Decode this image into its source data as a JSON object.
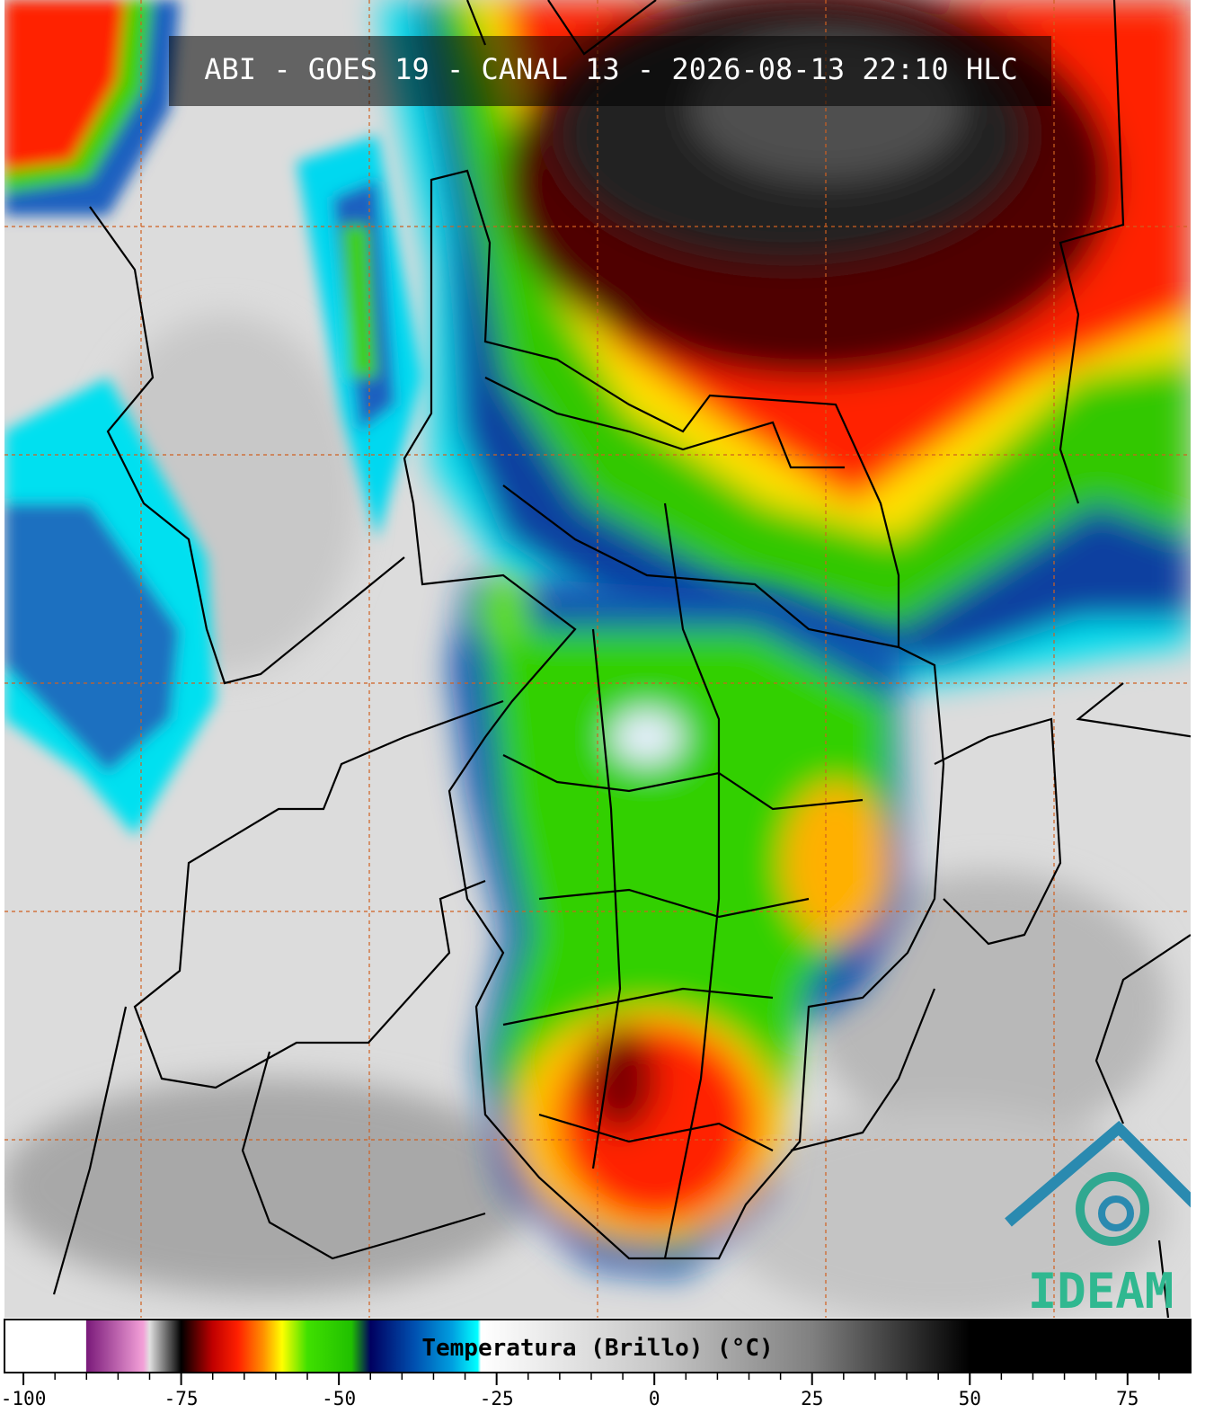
{
  "title": "ABI - GOES 19 - CANAL 13 - 2026-08-13 22:10 HLC",
  "logo_text": "IDEAM",
  "colorbar": {
    "label": "Temperatura (Brillo) (°C)",
    "lim": [
      -103,
      85
    ],
    "ticks": [
      -100,
      -75,
      -50,
      -25,
      0,
      25,
      50,
      75
    ],
    "minor_ticks": [
      -95,
      -90,
      -85,
      -80,
      -70,
      -65,
      -60,
      -55,
      -45,
      -40,
      -35,
      -30,
      -20,
      -15,
      -10,
      -5,
      5,
      10,
      15,
      20,
      30,
      35,
      40,
      45,
      55,
      60,
      65,
      70,
      80
    ],
    "stops": [
      {
        "value": -103,
        "color": "#ffffff"
      },
      {
        "value": -90.1,
        "color": "#ffffff"
      },
      {
        "value": -90,
        "color": "#7a1a7a"
      },
      {
        "value": -81,
        "color": "#f3a0d8"
      },
      {
        "value": -80,
        "color": "#e0e0e0"
      },
      {
        "value": -76,
        "color": "#303030"
      },
      {
        "value": -75,
        "color": "#000000"
      },
      {
        "value": -70,
        "color": "#c00000"
      },
      {
        "value": -66,
        "color": "#ff2000"
      },
      {
        "value": -62,
        "color": "#ff9000"
      },
      {
        "value": -59,
        "color": "#ffff00"
      },
      {
        "value": -55,
        "color": "#40e000"
      },
      {
        "value": -48,
        "color": "#20c000"
      },
      {
        "value": -45,
        "color": "#000060"
      },
      {
        "value": -38,
        "color": "#0050b0"
      },
      {
        "value": -32,
        "color": "#00a0e0"
      },
      {
        "value": -28,
        "color": "#00ffff"
      },
      {
        "value": -27.5,
        "color": "#ffffff"
      },
      {
        "value": 0,
        "color": "#c8c8c8"
      },
      {
        "value": 25,
        "color": "#808080"
      },
      {
        "value": 50,
        "color": "#000000"
      },
      {
        "value": 85,
        "color": "#000000"
      }
    ]
  }
}
